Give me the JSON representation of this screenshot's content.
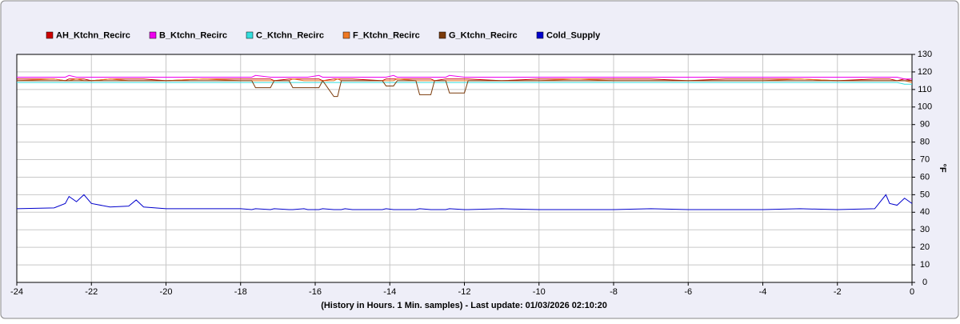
{
  "chart_data": {
    "type": "line",
    "xlabel": "(History in Hours. 1 Min. samples) - Last update: 01/03/2026 02:10:20",
    "ylabel": "°F",
    "x": [
      -24,
      -23,
      -22.7,
      -22.6,
      -22.4,
      -22.2,
      -22,
      -21.5,
      -21,
      -20.8,
      -20.6,
      -20,
      -19,
      -18,
      -17.7,
      -17.6,
      -17.2,
      -17.1,
      -16.7,
      -16.6,
      -16.3,
      -16.2,
      -15.9,
      -15.8,
      -15.5,
      -15.4,
      -15.3,
      -15.2,
      -15,
      -14.2,
      -14.1,
      -13.9,
      -13.8,
      -13.3,
      -13.2,
      -12.9,
      -12.8,
      -12.5,
      -12.4,
      -12,
      -11.9,
      -11,
      -10,
      -9,
      -8,
      -7,
      -6,
      -5,
      -4,
      -3,
      -2,
      -1,
      -0.7,
      -0.6,
      -0.4,
      -0.2,
      0
    ],
    "series": [
      {
        "name": "AH_Ktchn_Recirc",
        "color": "#cc0000",
        "values": [
          116,
          116,
          115,
          116,
          116,
          116,
          115,
          116,
          116,
          116,
          116,
          115,
          116,
          116,
          116,
          116,
          116,
          115,
          116,
          116,
          116,
          116,
          116,
          115,
          116,
          116,
          116,
          116,
          116,
          115,
          116,
          116,
          116,
          116,
          116,
          116,
          115,
          116,
          116,
          116,
          116,
          115,
          116,
          116,
          116,
          116,
          115,
          116,
          116,
          116,
          115,
          116,
          116,
          116,
          115,
          116,
          115
        ]
      },
      {
        "name": "B_Ktchn_Recirc",
        "color": "#ee00ee",
        "values": [
          117,
          117,
          117,
          118,
          117,
          117,
          117,
          117,
          117,
          117,
          117,
          117,
          117,
          117,
          117,
          118,
          117,
          117,
          117,
          117,
          117,
          117,
          118,
          117,
          117,
          117,
          117,
          117,
          117,
          117,
          117,
          118,
          117,
          117,
          117,
          117,
          117,
          117,
          118,
          117,
          117,
          117,
          117,
          117,
          117,
          117,
          117,
          117,
          117,
          117,
          117,
          117,
          117,
          117,
          117,
          116,
          116
        ]
      },
      {
        "name": "C_Ktchn_Recirc",
        "color": "#33dddd",
        "values": [
          114,
          114,
          114,
          114,
          114,
          114,
          114,
          114,
          114,
          114,
          114,
          114,
          114,
          114,
          114,
          114,
          114,
          114,
          114,
          114,
          114,
          114,
          114,
          114,
          114,
          114,
          114,
          114,
          114,
          114,
          114,
          114,
          114,
          114,
          114,
          114,
          114,
          114,
          114,
          114,
          114,
          114,
          114,
          114,
          114,
          114,
          114,
          114,
          114,
          114,
          114,
          114,
          114,
          114,
          114,
          113,
          113
        ]
      },
      {
        "name": "F_Ktchn_Recirc",
        "color": "#ee7722",
        "values": [
          115,
          116,
          115,
          115,
          116,
          115,
          115,
          116,
          115,
          115,
          115,
          115,
          116,
          115,
          115,
          115,
          115,
          115,
          115,
          116,
          115,
          115,
          115,
          115,
          115,
          116,
          115,
          115,
          115,
          115,
          115,
          115,
          116,
          115,
          115,
          115,
          115,
          115,
          115,
          115,
          115,
          115,
          115,
          116,
          115,
          115,
          115,
          115,
          115,
          116,
          115,
          115,
          115,
          115,
          115,
          115,
          114
        ]
      },
      {
        "name": "G_Ktchn_Recirc",
        "color": "#7a3a0a",
        "values": [
          115,
          115,
          115,
          115,
          115,
          115,
          115,
          115,
          115,
          115,
          115,
          115,
          115,
          115,
          115,
          111,
          111,
          115,
          115,
          111,
          111,
          111,
          111,
          115,
          106,
          106,
          115,
          115,
          115,
          115,
          112,
          112,
          115,
          115,
          107,
          107,
          115,
          115,
          108,
          108,
          115,
          115,
          115,
          115,
          115,
          115,
          115,
          115,
          115,
          115,
          115,
          115,
          115,
          115,
          115,
          115,
          115
        ]
      },
      {
        "name": "Cold_Supply",
        "color": "#0000cc",
        "values": [
          42,
          42.5,
          45,
          49,
          46,
          50,
          45,
          43,
          43.5,
          47,
          43,
          42,
          42,
          42,
          41.5,
          42,
          41.5,
          42,
          41.5,
          41.5,
          42,
          41.5,
          41.5,
          42,
          41.5,
          41.5,
          41.5,
          42,
          41.5,
          41.5,
          42,
          41.5,
          41.5,
          41.5,
          42,
          41.5,
          41.5,
          41.5,
          42,
          41.5,
          41.5,
          42,
          41.5,
          41.5,
          41.5,
          42,
          41.5,
          41.5,
          41.5,
          42,
          41.5,
          42,
          50,
          45,
          44,
          48,
          45
        ]
      }
    ],
    "xlim": [
      -24,
      0
    ],
    "xticks": [
      -24,
      -22,
      -20,
      -18,
      -16,
      -14,
      -12,
      -10,
      -8,
      -6,
      -4,
      -2,
      0
    ],
    "ylim": [
      0,
      130
    ],
    "yticks": [
      0,
      10,
      20,
      30,
      40,
      50,
      60,
      70,
      80,
      90,
      100,
      110,
      120,
      130
    ],
    "grid": true,
    "legend": "top"
  }
}
